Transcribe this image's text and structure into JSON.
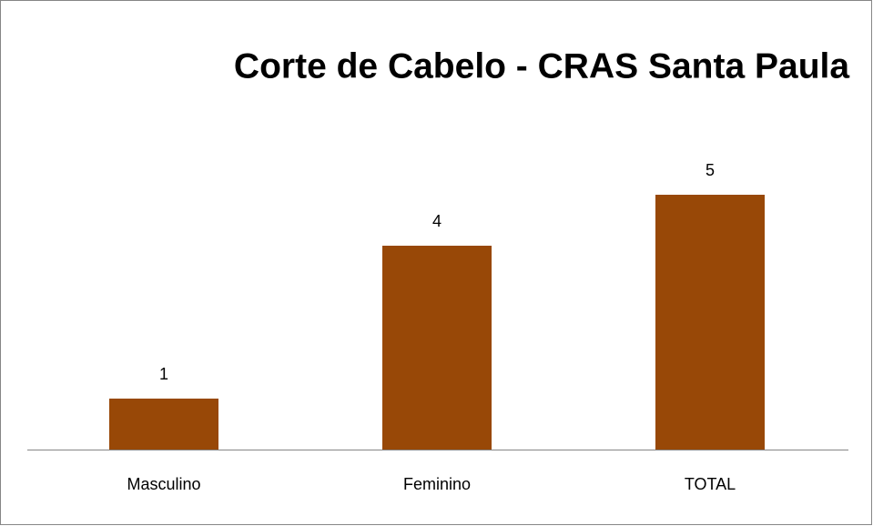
{
  "chart_data": {
    "type": "bar",
    "title": "Corte de Cabelo - CRAS Santa Paula",
    "categories": [
      "Masculino",
      "Feminino",
      "TOTAL"
    ],
    "values": [
      1,
      4,
      5
    ],
    "color": "#984807"
  }
}
